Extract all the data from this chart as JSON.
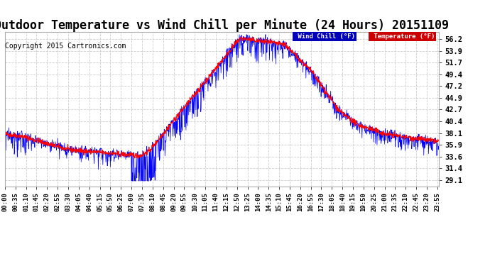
{
  "title": "Outdoor Temperature vs Wind Chill per Minute (24 Hours) 20151109",
  "copyright": "Copyright 2015 Cartronics.com",
  "ylabel_right_ticks": [
    29.1,
    31.4,
    33.6,
    35.9,
    38.1,
    40.4,
    42.7,
    44.9,
    47.2,
    49.4,
    51.7,
    53.9,
    56.2
  ],
  "ylim": [
    28.0,
    57.5
  ],
  "xlim": [
    0,
    1439
  ],
  "bg_color": "#ffffff",
  "plot_bg_color": "#ffffff",
  "grid_color": "#cccccc",
  "temp_color": "#ff0000",
  "wind_chill_color": "#0000ff",
  "legend_wind_chill_bg": "#0000bb",
  "legend_temp_bg": "#cc0000",
  "title_fontsize": 12,
  "copyright_fontsize": 7,
  "seed": 42
}
